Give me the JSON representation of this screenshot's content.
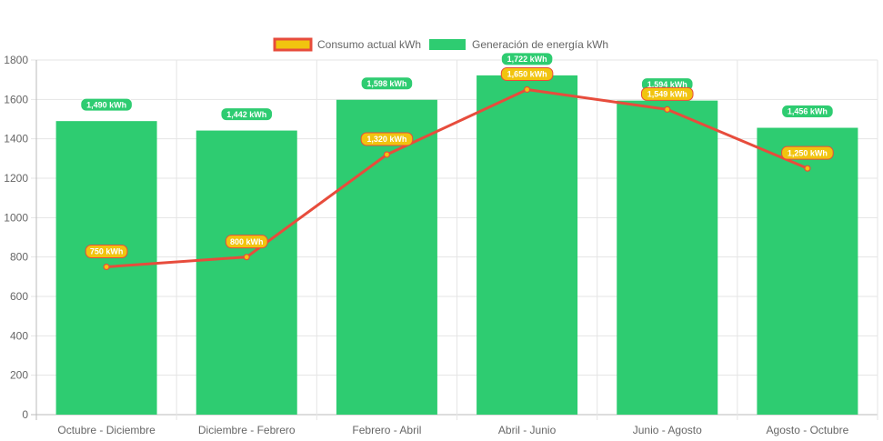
{
  "chart_data": {
    "type": "bar",
    "categories": [
      "Octubre - Diciembre",
      "Diciembre - Febrero",
      "Febrero - Abril",
      "Abril - Junio",
      "Junio - Agosto",
      "Agosto - Octubre"
    ],
    "series": [
      {
        "name": "Consumo actual kWh",
        "type": "line",
        "values": [
          750,
          800,
          1320,
          1650,
          1549,
          1250
        ],
        "data_labels": [
          "750 kWh",
          "800 kWh",
          "1,320 kWh",
          "1,650 kWh",
          "1,549 kWh",
          "1,250 kWh"
        ],
        "color": "#e74c3c",
        "point_color": "#f1c40f"
      },
      {
        "name": "Generación de energía kWh",
        "type": "bar",
        "values": [
          1490,
          1442,
          1598,
          1722,
          1594,
          1456
        ],
        "data_labels": [
          "1,490 kWh",
          "1,442 kWh",
          "1,598 kWh",
          "1,722 kWh",
          "1,594 kWh",
          "1,456 kWh"
        ],
        "color": "#2ecc71"
      }
    ],
    "ylim": [
      0,
      1800
    ],
    "yticks": [
      "0",
      "200",
      "400",
      "600",
      "800",
      "1000",
      "1200",
      "1400",
      "1600",
      "1800"
    ],
    "grid": true,
    "legend_position": "top-center",
    "xlabel": "",
    "ylabel": ""
  }
}
